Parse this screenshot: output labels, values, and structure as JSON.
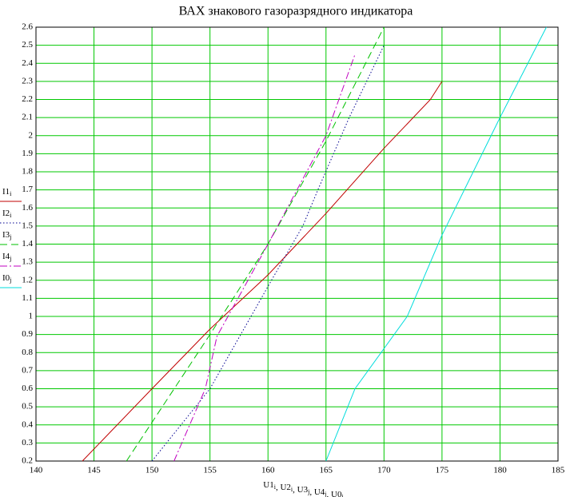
{
  "chart_data": {
    "type": "line",
    "title": "ВАХ знакового газоразрядного индикатора",
    "x_label": [
      {
        "text": "U1",
        "sub": "i"
      },
      {
        "text": "U2",
        "sub": "i"
      },
      {
        "text": "U3",
        "sub": "j"
      },
      {
        "text": "U4",
        "sub": "j"
      },
      {
        "text": "U0",
        "sub": "j"
      }
    ],
    "x_label_separator": ", ",
    "xlim": [
      140,
      185
    ],
    "xticks": [
      140,
      145,
      150,
      155,
      160,
      165,
      170,
      175,
      180,
      185
    ],
    "ylim": [
      0.2,
      2.6
    ],
    "yticks": [
      0.2,
      0.3,
      0.4,
      0.5,
      0.6,
      0.7,
      0.8,
      0.9,
      1,
      1.1,
      1.2,
      1.3,
      1.4,
      1.5,
      1.6,
      1.7,
      1.8,
      1.9,
      2,
      2.1,
      2.2,
      2.3,
      2.4,
      2.5,
      2.6
    ],
    "grid": true,
    "grid_color": "#00c800",
    "series": [
      {
        "name": "I1",
        "sub": "i",
        "color": "#c00000",
        "style": "solid",
        "x": [
          144,
          150,
          155,
          160,
          165,
          170,
          174,
          175
        ],
        "values": [
          0.2,
          0.6,
          0.93,
          1.23,
          1.57,
          1.93,
          2.2,
          2.3
        ]
      },
      {
        "name": "I2",
        "sub": "i",
        "color": "#000090",
        "style": "dot",
        "x": [
          150,
          155,
          160.3,
          163,
          164.3,
          167,
          170
        ],
        "values": [
          0.2,
          0.6,
          1.2,
          1.5,
          1.7,
          2.1,
          2.5
        ]
      },
      {
        "name": "I3",
        "sub": "j",
        "color": "#00c000",
        "style": "dash",
        "x": [
          147.8,
          155,
          160,
          165,
          170
        ],
        "values": [
          0.2,
          0.9,
          1.4,
          1.97,
          2.6
        ]
      },
      {
        "name": "I4",
        "sub": "j",
        "color": "#c000c0",
        "style": "dashdot",
        "x": [
          151.9,
          154.6,
          155.6,
          160,
          165,
          167.5
        ],
        "values": [
          0.2,
          0.6,
          0.89,
          1.4,
          2.0,
          2.45
        ]
      },
      {
        "name": "I0",
        "sub": "j",
        "color": "#00dcdc",
        "style": "solid",
        "x": [
          165,
          167.5,
          172,
          175,
          180,
          184
        ],
        "values": [
          0.2,
          0.6,
          1.0,
          1.45,
          2.1,
          2.6
        ]
      }
    ]
  }
}
